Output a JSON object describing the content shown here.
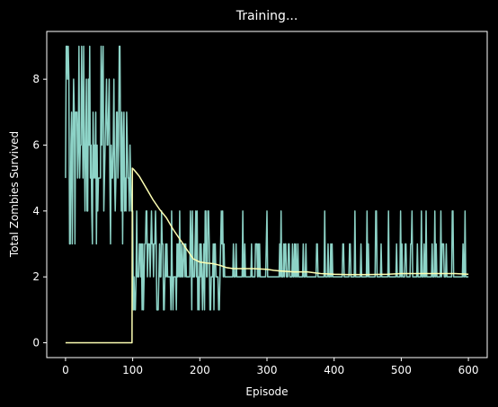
{
  "chart_data": {
    "type": "line",
    "title": "Training...",
    "xlabel": "Episode",
    "ylabel": "Total Zombies Survived",
    "xlim": [
      -28,
      628
    ],
    "ylim": [
      -0.45,
      9.45
    ],
    "xticks": [
      0,
      100,
      200,
      300,
      400,
      500,
      600
    ],
    "yticks": [
      0,
      2,
      4,
      6,
      8
    ],
    "grid": false,
    "legend": "none",
    "colors": {
      "background": "#000000",
      "axes": "#ffffff",
      "series_per_episode": "#8dd3c7",
      "series_moving_average": "#feffb3"
    },
    "series": [
      {
        "key": "per_episode",
        "x_range": [
          0,
          600
        ],
        "seed": 7,
        "segments": [
          {
            "from": 0,
            "to": 100,
            "base": 5,
            "choices": [
              3,
              4,
              4,
              5,
              5,
              5,
              6,
              6,
              6,
              7,
              7,
              8,
              9
            ],
            "p": 1.0
          },
          {
            "from": 101,
            "to": 140,
            "base": 3,
            "choices": [
              1,
              2,
              2,
              2,
              3,
              3,
              4
            ],
            "p": 0.9
          },
          {
            "from": 141,
            "to": 230,
            "base": 2,
            "choices": [
              1,
              2,
              3,
              3,
              4
            ],
            "p": 0.55
          },
          {
            "from": 231,
            "to": 600,
            "base": 2,
            "choices": [
              3,
              3,
              3,
              4
            ],
            "p": 0.18
          }
        ],
        "spikes": [
          [
            2,
            9
          ],
          [
            20,
            9
          ],
          [
            24,
            9
          ],
          [
            27,
            9
          ],
          [
            36,
            9
          ],
          [
            31,
            8
          ],
          [
            5,
            8
          ],
          [
            45,
            7
          ],
          [
            60,
            7
          ],
          [
            76,
            7
          ],
          [
            121,
            4
          ],
          [
            186,
            4
          ],
          [
            213,
            4
          ],
          [
            300,
            4
          ],
          [
            449,
            4
          ],
          [
            530,
            4
          ]
        ]
      },
      {
        "key": "moving_average",
        "points": [
          [
            0,
            0
          ],
          [
            99,
            0
          ],
          [
            99.5,
            5.3
          ],
          [
            102,
            5.25
          ],
          [
            110,
            5.05
          ],
          [
            120,
            4.7
          ],
          [
            130,
            4.35
          ],
          [
            140,
            4.05
          ],
          [
            150,
            3.8
          ],
          [
            160,
            3.45
          ],
          [
            170,
            3.15
          ],
          [
            180,
            2.85
          ],
          [
            190,
            2.55
          ],
          [
            200,
            2.45
          ],
          [
            210,
            2.42
          ],
          [
            220,
            2.4
          ],
          [
            230,
            2.35
          ],
          [
            240,
            2.28
          ],
          [
            250,
            2.25
          ],
          [
            260,
            2.25
          ],
          [
            280,
            2.25
          ],
          [
            300,
            2.23
          ],
          [
            310,
            2.2
          ],
          [
            320,
            2.18
          ],
          [
            340,
            2.15
          ],
          [
            360,
            2.15
          ],
          [
            380,
            2.1
          ],
          [
            400,
            2.08
          ],
          [
            420,
            2.07
          ],
          [
            450,
            2.07
          ],
          [
            480,
            2.08
          ],
          [
            500,
            2.1
          ],
          [
            520,
            2.1
          ],
          [
            560,
            2.1
          ],
          [
            580,
            2.1
          ],
          [
            600,
            2.08
          ]
        ]
      }
    ]
  }
}
